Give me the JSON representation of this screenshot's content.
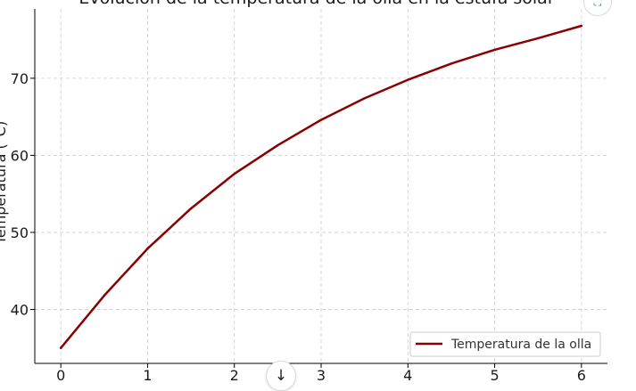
{
  "chart_data": {
    "type": "line",
    "title": "Evolución de la temperatura de la olla en la estufa solar",
    "xlabel": "",
    "ylabel": "Temperatura (°C)",
    "xlim": [
      -0.3,
      6.3
    ],
    "ylim": [
      33,
      79
    ],
    "xticks": [
      0,
      1,
      2,
      3,
      4,
      5,
      6
    ],
    "yticks": [
      40,
      50,
      60,
      70
    ],
    "grid": true,
    "legend_position": "lower-right",
    "series": [
      {
        "name": "Temperatura de la olla",
        "color": "#8b0000",
        "x": [
          0,
          0.5,
          1,
          1.5,
          2,
          2.5,
          3,
          3.5,
          4,
          4.5,
          5,
          5.5,
          6
        ],
        "y": [
          35.0,
          41.8,
          47.9,
          53.1,
          57.6,
          61.3,
          64.6,
          67.4,
          69.8,
          71.9,
          73.7,
          75.2,
          76.8
        ]
      }
    ]
  },
  "controls": {
    "scroll_down_icon": "↓",
    "expand_icon": "⛶"
  }
}
